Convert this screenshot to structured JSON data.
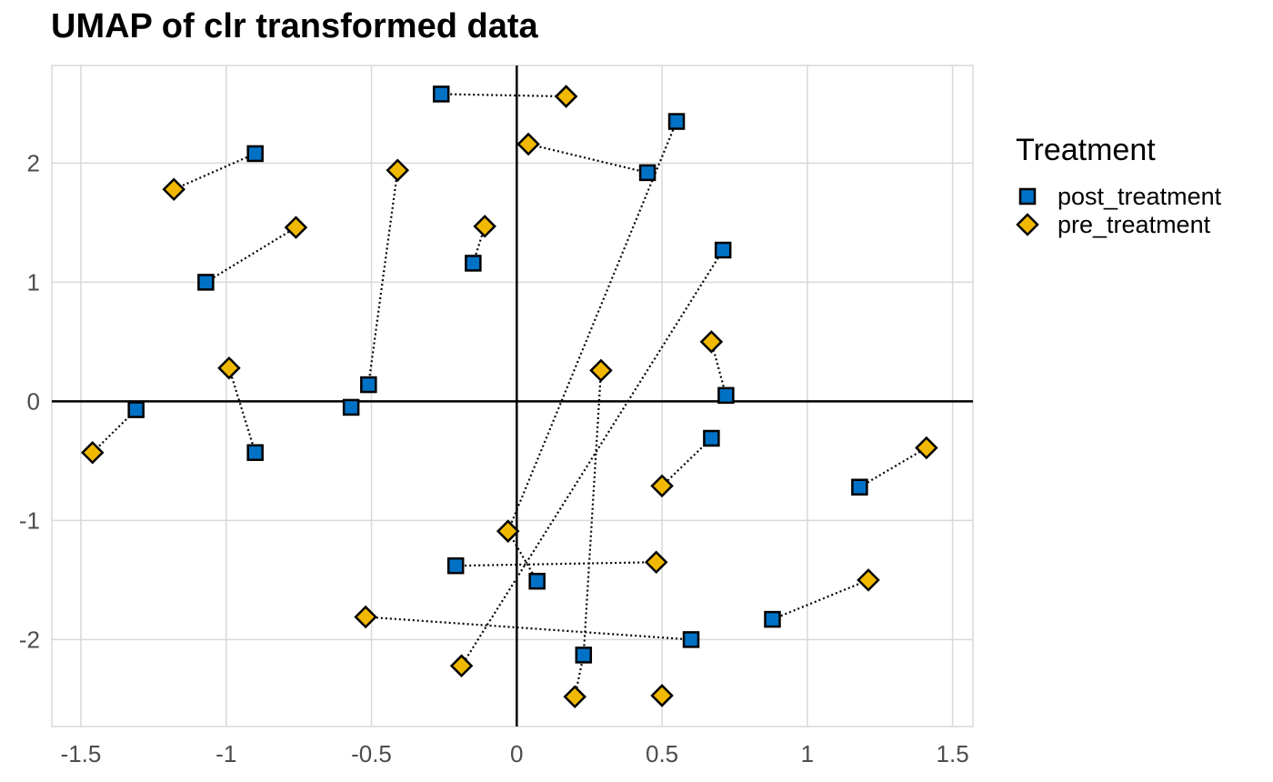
{
  "chart_data": {
    "type": "scatter",
    "title": "UMAP of clr transformed data",
    "xlabel": "",
    "ylabel": "",
    "xlim": [
      -1.6,
      1.57
    ],
    "ylim": [
      -2.73,
      2.82
    ],
    "xticks": [
      -1.5,
      -1,
      -0.5,
      0,
      0.5,
      1,
      1.5
    ],
    "xtick_labels": [
      "-1.5",
      "-1",
      "-0.5",
      "0",
      "0.5",
      "1",
      "1.5"
    ],
    "yticks": [
      -2,
      -1,
      0,
      1,
      2
    ],
    "ytick_labels": [
      "-2",
      "-1",
      "0",
      "1",
      "2"
    ],
    "grid": true,
    "legend": {
      "title": "Treatment",
      "position": "right",
      "entries": [
        {
          "label": "post_treatment",
          "marker": "square",
          "color": "#0072C6"
        },
        {
          "label": "pre_treatment",
          "marker": "diamond",
          "color": "#F0B800"
        }
      ]
    },
    "series": [
      {
        "name": "post_treatment",
        "marker": "square",
        "color": "#0072C6",
        "points": [
          [
            -0.26,
            2.58
          ],
          [
            0.55,
            2.35
          ],
          [
            -0.9,
            2.08
          ],
          [
            0.45,
            1.92
          ],
          [
            -1.07,
            1.0
          ],
          [
            -0.15,
            1.16
          ],
          [
            0.71,
            1.27
          ],
          [
            -0.51,
            0.14
          ],
          [
            -0.57,
            -0.05
          ],
          [
            -1.31,
            -0.07
          ],
          [
            0.72,
            0.05
          ],
          [
            -0.9,
            -0.43
          ],
          [
            0.67,
            -0.31
          ],
          [
            1.18,
            -0.72
          ],
          [
            -0.21,
            -1.38
          ],
          [
            0.07,
            -1.51
          ],
          [
            0.88,
            -1.83
          ],
          [
            0.6,
            -2.0
          ],
          [
            0.23,
            -2.13
          ]
        ]
      },
      {
        "name": "pre_treatment",
        "marker": "diamond",
        "color": "#F0B800",
        "points": [
          [
            0.17,
            2.56
          ],
          [
            0.04,
            2.16
          ],
          [
            -1.18,
            1.78
          ],
          [
            -0.41,
            1.94
          ],
          [
            -0.11,
            1.47
          ],
          [
            -0.76,
            1.46
          ],
          [
            -0.99,
            0.28
          ],
          [
            0.67,
            0.5
          ],
          [
            0.29,
            0.26
          ],
          [
            -1.46,
            -0.43
          ],
          [
            0.5,
            -0.71
          ],
          [
            1.41,
            -0.39
          ],
          [
            -0.03,
            -1.09
          ],
          [
            0.48,
            -1.35
          ],
          [
            1.21,
            -1.5
          ],
          [
            -0.52,
            -1.81
          ],
          [
            -0.19,
            -2.22
          ],
          [
            0.2,
            -2.48
          ],
          [
            0.5,
            -2.47
          ]
        ]
      }
    ],
    "pairs": [
      [
        [
          -0.26,
          2.58
        ],
        [
          0.17,
          2.56
        ]
      ],
      [
        [
          -0.9,
          2.08
        ],
        [
          -1.18,
          1.78
        ]
      ],
      [
        [
          0.45,
          1.92
        ],
        [
          0.04,
          2.16
        ]
      ],
      [
        [
          -1.07,
          1.0
        ],
        [
          -0.76,
          1.46
        ]
      ],
      [
        [
          -0.15,
          1.16
        ],
        [
          -0.11,
          1.47
        ]
      ],
      [
        [
          -0.51,
          0.14
        ],
        [
          -0.41,
          1.94
        ]
      ],
      [
        [
          0.55,
          2.35
        ],
        [
          -0.03,
          -1.09
        ]
      ],
      [
        [
          0.71,
          1.27
        ],
        [
          -0.19,
          -2.22
        ]
      ],
      [
        [
          -1.31,
          -0.07
        ],
        [
          -1.46,
          -0.43
        ]
      ],
      [
        [
          -0.9,
          -0.43
        ],
        [
          -0.99,
          0.28
        ]
      ],
      [
        [
          0.72,
          0.05
        ],
        [
          0.67,
          0.5
        ]
      ],
      [
        [
          0.67,
          -0.31
        ],
        [
          0.5,
          -0.71
        ]
      ],
      [
        [
          1.18,
          -0.72
        ],
        [
          1.41,
          -0.39
        ]
      ],
      [
        [
          -0.21,
          -1.38
        ],
        [
          0.48,
          -1.35
        ]
      ],
      [
        [
          0.07,
          -1.51
        ],
        [
          -0.03,
          -1.09
        ]
      ],
      [
        [
          0.88,
          -1.83
        ],
        [
          1.21,
          -1.5
        ]
      ],
      [
        [
          0.6,
          -2.0
        ],
        [
          -0.52,
          -1.81
        ]
      ],
      [
        [
          0.23,
          -2.13
        ],
        [
          0.29,
          0.26
        ]
      ],
      [
        [
          0.23,
          -2.13
        ],
        [
          0.2,
          -2.48
        ]
      ]
    ]
  }
}
